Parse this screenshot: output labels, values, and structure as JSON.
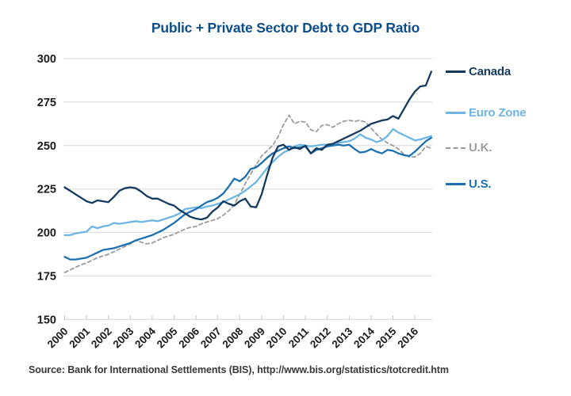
{
  "title": "Public + Private Sector Debt to GDP Ratio",
  "source": "Source: Bank for International Settlements (BIS), http://www.bis.org/statistics/totcredit.htm",
  "colors": {
    "title_text": "#0c4d8c",
    "axis_text": "#1b1b1b",
    "source_text": "#383838",
    "gridline": "#d8d8d8",
    "tick": "#c8c8c8",
    "canada": "#133a5e",
    "euro_zone": "#6db5e2",
    "uk": "#9c9c9c",
    "us": "#1d6fae"
  },
  "chart_data": {
    "type": "line",
    "title": "Public + Private Sector Debt to GDP Ratio",
    "xlabel": "",
    "ylabel": "",
    "x_start": 2000.0,
    "x_step": 0.25,
    "x_tick_labels": [
      "2000",
      "2001",
      "2002",
      "2003",
      "2004",
      "2005",
      "2006",
      "2007",
      "2008",
      "2009",
      "2010",
      "2011",
      "2012",
      "2013",
      "2014",
      "2015",
      "2016"
    ],
    "y_ticks": [
      150,
      175,
      200,
      225,
      250,
      275,
      300
    ],
    "ylim": [
      150,
      300
    ],
    "xlim": [
      2000,
      2016.9
    ],
    "grid": "horizontal",
    "legend_position": "right",
    "draw_order": [
      "U.K.",
      "Euro Zone",
      "U.S.",
      "Canada"
    ],
    "series": [
      {
        "name": "Canada",
        "color_key": "canada",
        "dash": false,
        "values": [
          226,
          224,
          222,
          220,
          218,
          217,
          218.5,
          218,
          217.5,
          220.5,
          224,
          225.5,
          226,
          225.5,
          223.5,
          221,
          219.5,
          219.5,
          218,
          216.5,
          215.5,
          213,
          211,
          209,
          208,
          207.5,
          208.5,
          212,
          214.5,
          218,
          216.5,
          215.5,
          218,
          219.5,
          215,
          214.5,
          222,
          233,
          243,
          249.5,
          250.5,
          247.5,
          249,
          248,
          250,
          245.5,
          248.5,
          247.5,
          250.5,
          251,
          252.5,
          254,
          255.5,
          257,
          258.5,
          260.5,
          262.5,
          263.5,
          264.5,
          265,
          267,
          265.5,
          271,
          276.5,
          281,
          284,
          284.5,
          292.5
        ]
      },
      {
        "name": "Euro Zone",
        "color_key": "euro_zone",
        "dash": false,
        "values": [
          198.5,
          198.5,
          199.5,
          200,
          200.5,
          203.5,
          202.5,
          203.5,
          204,
          205.5,
          205,
          205.5,
          206,
          206.5,
          206,
          206.5,
          207,
          206.5,
          207.5,
          208.5,
          209.5,
          211,
          213.5,
          214,
          214.5,
          214,
          215,
          215.5,
          216.5,
          217.5,
          219,
          220.5,
          222,
          224,
          226.5,
          229,
          233,
          237,
          240.5,
          243.5,
          246,
          247.5,
          249.5,
          250.5,
          250,
          249.5,
          250,
          250.5,
          250.5,
          251,
          251.5,
          252,
          252.5,
          254,
          256.5,
          254.5,
          253.5,
          252,
          253,
          255.5,
          259.5,
          257.5,
          256,
          254.5,
          253,
          253.5,
          254.5,
          255.5
        ]
      },
      {
        "name": "U.K.",
        "color_key": "uk",
        "dash": true,
        "values": [
          177,
          178.5,
          180,
          181.5,
          182.5,
          184,
          185.5,
          186.5,
          187.5,
          189,
          190.5,
          192,
          193.5,
          195.5,
          194.5,
          193.5,
          194,
          195.5,
          197,
          198,
          199,
          200.5,
          202,
          203,
          203.5,
          205,
          206,
          207,
          208,
          210,
          212.5,
          216,
          222,
          228,
          233.5,
          239,
          244,
          247,
          250,
          255,
          262,
          267.5,
          262.5,
          264,
          263.5,
          259,
          258,
          261.5,
          262,
          260.5,
          262.5,
          264,
          264.5,
          264,
          264.5,
          263.5,
          260,
          256.5,
          253.5,
          251.5,
          250,
          248,
          245,
          243.5,
          243.5,
          245.5,
          249.5,
          248.5
        ]
      },
      {
        "name": "U.S.",
        "color_key": "us",
        "dash": false,
        "values": [
          186,
          184.5,
          184.5,
          185,
          185.5,
          187,
          188.5,
          190,
          190.5,
          191,
          192,
          193,
          194,
          195.5,
          196.5,
          197.5,
          198.5,
          200,
          201.5,
          203.5,
          205.5,
          208,
          210.5,
          212,
          213.5,
          215.5,
          217.5,
          218.5,
          220,
          222.5,
          226.5,
          231,
          229.5,
          232,
          236.5,
          237.5,
          240,
          243,
          245.5,
          247,
          248.5,
          249.5,
          248.5,
          249,
          249.5,
          245.5,
          247.5,
          248.5,
          249.5,
          250,
          250.5,
          250,
          250.5,
          248,
          246,
          246.5,
          248,
          246.5,
          245.5,
          247.5,
          247,
          245.5,
          244.5,
          244,
          246.5,
          249.5,
          252.5,
          254.5
        ]
      }
    ]
  }
}
